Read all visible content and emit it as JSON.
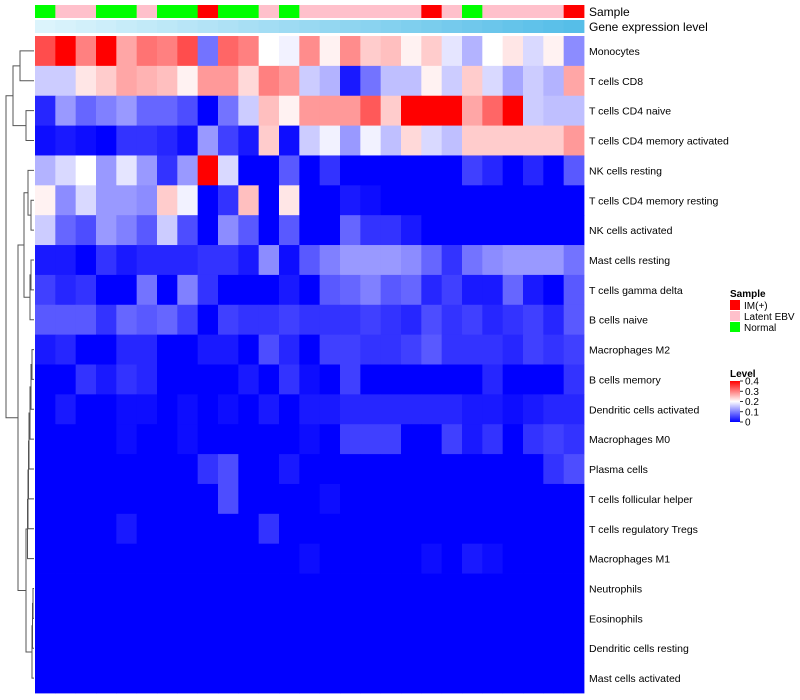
{
  "chart_data": {
    "type": "heatmap",
    "annotations": {
      "sample_label": "Sample",
      "level_label": "Gene expression level"
    },
    "columns": {
      "sample": [
        "Normal",
        "Latent EBV",
        "Latent EBV",
        "Normal",
        "Normal",
        "Latent EBV",
        "Normal",
        "Normal",
        "IM(+)",
        "Normal",
        "Normal",
        "Latent EBV",
        "Normal",
        "Latent EBV",
        "Latent EBV",
        "Latent EBV",
        "Latent EBV",
        "Latent EBV",
        "Latent EBV",
        "IM(+)",
        "Latent EBV",
        "Normal",
        "Latent EBV",
        "Latent EBV",
        "Latent EBV",
        "Latent EBV",
        "IM(+)"
      ],
      "level": [
        0.02,
        0.04,
        0.06,
        0.08,
        0.1,
        0.12,
        0.14,
        0.16,
        0.18,
        0.2,
        0.22,
        0.24,
        0.26,
        0.28,
        0.3,
        0.32,
        0.34,
        0.36,
        0.38,
        0.4,
        0.42,
        0.44,
        0.46,
        0.48,
        0.5,
        0.52,
        0.54
      ]
    },
    "rows": [
      {
        "name": "Monocytes",
        "values": [
          0.34,
          0.4,
          0.3,
          0.4,
          0.27,
          0.31,
          0.3,
          0.34,
          0.09,
          0.32,
          0.3,
          0.2,
          0.19,
          0.29,
          0.21,
          0.29,
          0.24,
          0.25,
          0.21,
          0.24,
          0.18,
          0.14,
          0.2,
          0.22,
          0.17,
          0.21,
          0.11
        ]
      },
      {
        "name": "T cells CD8",
        "values": [
          0.16,
          0.16,
          0.22,
          0.24,
          0.27,
          0.26,
          0.25,
          0.21,
          0.28,
          0.28,
          0.23,
          0.3,
          0.28,
          0.16,
          0.14,
          0.02,
          0.09,
          0.15,
          0.15,
          0.21,
          0.16,
          0.24,
          0.17,
          0.13,
          0.16,
          0.14,
          0.27
        ]
      },
      {
        "name": "T cells CD4 naive",
        "values": [
          0.03,
          0.12,
          0.08,
          0.1,
          0.12,
          0.08,
          0.08,
          0.06,
          0.0,
          0.09,
          0.16,
          0.25,
          0.21,
          0.28,
          0.28,
          0.28,
          0.33,
          0.24,
          0.4,
          0.4,
          0.4,
          0.27,
          0.32,
          0.4,
          0.16,
          0.15,
          0.15
        ]
      },
      {
        "name": "T cells CD4 memory activated",
        "values": [
          0.01,
          0.02,
          0.01,
          0.0,
          0.04,
          0.04,
          0.03,
          0.01,
          0.12,
          0.05,
          0.02,
          0.24,
          0.01,
          0.16,
          0.19,
          0.12,
          0.19,
          0.15,
          0.23,
          0.17,
          0.15,
          0.24,
          0.24,
          0.24,
          0.24,
          0.24,
          0.28
        ]
      },
      {
        "name": "NK cells resting",
        "values": [
          0.14,
          0.17,
          0.2,
          0.12,
          0.18,
          0.12,
          0.04,
          0.12,
          0.4,
          0.17,
          0.0,
          0.0,
          0.07,
          0.0,
          0.04,
          0.0,
          0.0,
          0.0,
          0.0,
          0.0,
          0.0,
          0.05,
          0.03,
          0.0,
          0.03,
          0.0,
          0.07
        ]
      },
      {
        "name": "T cells CD4 memory resting",
        "values": [
          0.21,
          0.11,
          0.17,
          0.12,
          0.12,
          0.11,
          0.24,
          0.19,
          0.0,
          0.04,
          0.25,
          0.0,
          0.22,
          0.0,
          0.0,
          0.02,
          0.01,
          0.0,
          0.0,
          0.0,
          0.0,
          0.0,
          0.0,
          0.0,
          0.0,
          0.0,
          0.0
        ]
      },
      {
        "name": "NK cells activated",
        "values": [
          0.16,
          0.08,
          0.06,
          0.12,
          0.1,
          0.07,
          0.16,
          0.06,
          0.0,
          0.11,
          0.07,
          0.0,
          0.07,
          0.0,
          0.0,
          0.08,
          0.04,
          0.04,
          0.02,
          0.0,
          0.0,
          0.0,
          0.0,
          0.0,
          0.0,
          0.0,
          0.0
        ]
      },
      {
        "name": "Mast cells resting",
        "values": [
          0.02,
          0.02,
          0.0,
          0.04,
          0.02,
          0.03,
          0.03,
          0.03,
          0.04,
          0.04,
          0.02,
          0.11,
          0.01,
          0.07,
          0.1,
          0.12,
          0.12,
          0.12,
          0.11,
          0.08,
          0.04,
          0.09,
          0.11,
          0.12,
          0.12,
          0.12,
          0.09
        ]
      },
      {
        "name": "T cells gamma delta",
        "values": [
          0.05,
          0.03,
          0.04,
          0.0,
          0.0,
          0.09,
          0.0,
          0.1,
          0.04,
          0.0,
          0.0,
          0.0,
          0.02,
          0.0,
          0.07,
          0.08,
          0.1,
          0.07,
          0.08,
          0.03,
          0.05,
          0.02,
          0.02,
          0.08,
          0.02,
          0.0,
          0.07
        ]
      },
      {
        "name": "B cells naive",
        "values": [
          0.07,
          0.07,
          0.07,
          0.04,
          0.08,
          0.07,
          0.08,
          0.05,
          0.0,
          0.05,
          0.04,
          0.04,
          0.05,
          0.04,
          0.04,
          0.04,
          0.05,
          0.04,
          0.03,
          0.06,
          0.04,
          0.05,
          0.03,
          0.04,
          0.05,
          0.03,
          0.07
        ]
      },
      {
        "name": "Macrophages M2",
        "values": [
          0.02,
          0.03,
          0.0,
          0.0,
          0.03,
          0.03,
          0.0,
          0.0,
          0.02,
          0.02,
          0.0,
          0.06,
          0.03,
          0.0,
          0.05,
          0.05,
          0.04,
          0.04,
          0.05,
          0.07,
          0.04,
          0.04,
          0.04,
          0.03,
          0.05,
          0.04,
          0.05
        ]
      },
      {
        "name": "B cells memory",
        "values": [
          0.0,
          0.0,
          0.04,
          0.02,
          0.04,
          0.03,
          0.0,
          0.0,
          0.0,
          0.0,
          0.02,
          0.0,
          0.04,
          0.01,
          0.0,
          0.05,
          0.0,
          0.0,
          0.0,
          0.0,
          0.0,
          0.0,
          0.03,
          0.0,
          0.0,
          0.0,
          0.04
        ]
      },
      {
        "name": "Dendritic cells activated",
        "values": [
          0.0,
          0.02,
          0.0,
          0.0,
          0.01,
          0.01,
          0.0,
          0.01,
          0.0,
          0.01,
          0.0,
          0.02,
          0.0,
          0.02,
          0.02,
          0.03,
          0.03,
          0.03,
          0.03,
          0.03,
          0.03,
          0.02,
          0.02,
          0.01,
          0.02,
          0.03,
          0.03
        ]
      },
      {
        "name": "Macrophages M0",
        "values": [
          0.0,
          0.0,
          0.0,
          0.0,
          0.01,
          0.0,
          0.0,
          0.01,
          0.0,
          0.0,
          0.0,
          0.0,
          0.0,
          0.01,
          0.0,
          0.05,
          0.05,
          0.05,
          0.0,
          0.0,
          0.05,
          0.02,
          0.04,
          0.0,
          0.04,
          0.05,
          0.04
        ]
      },
      {
        "name": "Plasma cells",
        "values": [
          0.0,
          0.0,
          0.0,
          0.0,
          0.0,
          0.0,
          0.0,
          0.0,
          0.04,
          0.06,
          0.0,
          0.0,
          0.02,
          0.0,
          0.0,
          0.0,
          0.0,
          0.0,
          0.0,
          0.0,
          0.0,
          0.0,
          0.0,
          0.0,
          0.0,
          0.04,
          0.06
        ]
      },
      {
        "name": "T cells follicular helper",
        "values": [
          0.0,
          0.0,
          0.0,
          0.0,
          0.0,
          0.0,
          0.0,
          0.0,
          0.0,
          0.06,
          0.0,
          0.0,
          0.0,
          0.0,
          0.01,
          0.0,
          0.0,
          0.0,
          0.0,
          0.0,
          0.0,
          0.0,
          0.0,
          0.0,
          0.0,
          0.0,
          0.0
        ]
      },
      {
        "name": "T cells regulatory  Tregs",
        "values": [
          0.0,
          0.0,
          0.0,
          0.0,
          0.02,
          0.0,
          0.0,
          0.0,
          0.0,
          0.0,
          0.0,
          0.04,
          0.0,
          0.0,
          0.0,
          0.0,
          0.0,
          0.0,
          0.0,
          0.0,
          0.0,
          0.0,
          0.0,
          0.0,
          0.0,
          0.0,
          0.0
        ]
      },
      {
        "name": "Macrophages M1",
        "values": [
          0.0,
          0.0,
          0.0,
          0.0,
          0.0,
          0.0,
          0.0,
          0.0,
          0.0,
          0.0,
          0.0,
          0.0,
          0.0,
          0.01,
          0.0,
          0.0,
          0.0,
          0.0,
          0.0,
          0.01,
          0.0,
          0.02,
          0.01,
          0.0,
          0.0,
          0.0,
          0.0
        ]
      },
      {
        "name": "Neutrophils",
        "values": [
          0,
          0,
          0,
          0,
          0,
          0,
          0,
          0,
          0,
          0,
          0,
          0,
          0,
          0,
          0,
          0,
          0,
          0,
          0,
          0,
          0,
          0,
          0,
          0,
          0,
          0,
          0
        ]
      },
      {
        "name": "Eosinophils",
        "values": [
          0,
          0,
          0,
          0,
          0,
          0,
          0,
          0,
          0,
          0,
          0,
          0,
          0,
          0,
          0,
          0,
          0,
          0,
          0,
          0,
          0,
          0,
          0,
          0,
          0,
          0,
          0
        ]
      },
      {
        "name": "Dendritic cells resting",
        "values": [
          0,
          0,
          0,
          0,
          0,
          0,
          0,
          0,
          0,
          0,
          0,
          0,
          0,
          0,
          0,
          0,
          0,
          0,
          0,
          0,
          0,
          0,
          0,
          0,
          0,
          0,
          0
        ]
      },
      {
        "name": "Mast cells activated",
        "values": [
          0,
          0,
          0,
          0,
          0,
          0,
          0,
          0,
          0,
          0,
          0,
          0,
          0,
          0,
          0,
          0,
          0,
          0,
          0,
          0,
          0,
          0,
          0,
          0,
          0,
          0,
          0
        ]
      }
    ],
    "colorscale": {
      "min": 0,
      "max": 0.4,
      "low_color": "#0000ff",
      "mid_color": "#ffffff",
      "high_color": "#ff0000"
    },
    "legend": {
      "sample_title": "Sample",
      "sample_entries": [
        {
          "label": "IM(+)",
          "color": "#ff0000"
        },
        {
          "label": "Latent EBV",
          "color": "#ffc0cb"
        },
        {
          "label": "Normal",
          "color": "#00ff00"
        }
      ],
      "level_title": "Level",
      "level_ticks": [
        "0.4",
        "0.3",
        "0.2",
        "0.1",
        "0"
      ],
      "level_tick_values": [
        0.4,
        0.3,
        0.2,
        0.1,
        0
      ]
    }
  }
}
